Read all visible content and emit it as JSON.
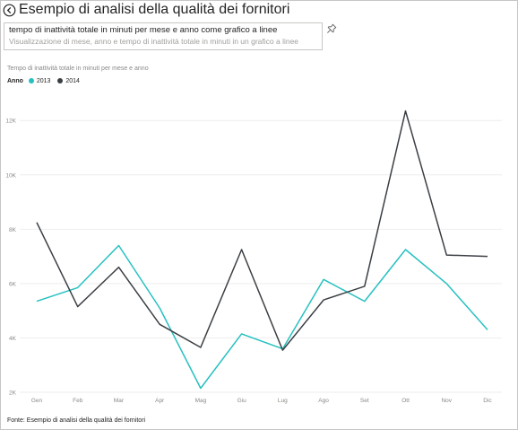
{
  "header": {
    "title": "Esempio di analisi della qualità dei fornitori"
  },
  "qa": {
    "query": "tempo di inattività totale in minuti per mese e anno come grafico a linee",
    "hint": "Visualizzazione di mese, anno e tempo di inattività totale in minuti in un grafico a linee"
  },
  "icons": {
    "back": "back-arrow-icon",
    "pin": "pin-icon"
  },
  "legend": {
    "title": "Anno"
  },
  "footer": {
    "source": "Fonte: Esempio di analisi della qualità dei fornitori"
  },
  "colors": {
    "series_2013": "#27c0c0",
    "series_2014": "#3b3f44",
    "grid": "#eeeeee",
    "axis_text": "#8a8886"
  },
  "chart_data": {
    "type": "line",
    "title": "Tempo di inattività totale in minuti per mese e anno",
    "x": [
      "Gen",
      "Feb",
      "Mar",
      "Apr",
      "Mag",
      "Giu",
      "Lug",
      "Ago",
      "Set",
      "Ott",
      "Nov",
      "Dic"
    ],
    "series": [
      {
        "name": "2013",
        "color": "#27c0c0",
        "values": [
          5350,
          5850,
          7400,
          5100,
          2150,
          4150,
          3600,
          6150,
          5350,
          7250,
          6000,
          4300
        ]
      },
      {
        "name": "2014",
        "color": "#3b3f44",
        "values": [
          8250,
          5150,
          6600,
          4500,
          3650,
          7250,
          3550,
          5400,
          5900,
          12350,
          7050,
          7000
        ]
      }
    ],
    "yticks": [
      2000,
      4000,
      6000,
      8000,
      10000,
      12000
    ],
    "ytick_labels": [
      "2K",
      "4K",
      "6K",
      "8K",
      "10K",
      "12K"
    ],
    "ylim": [
      2000,
      12800
    ],
    "grid": true,
    "legend_position": "top-left"
  }
}
